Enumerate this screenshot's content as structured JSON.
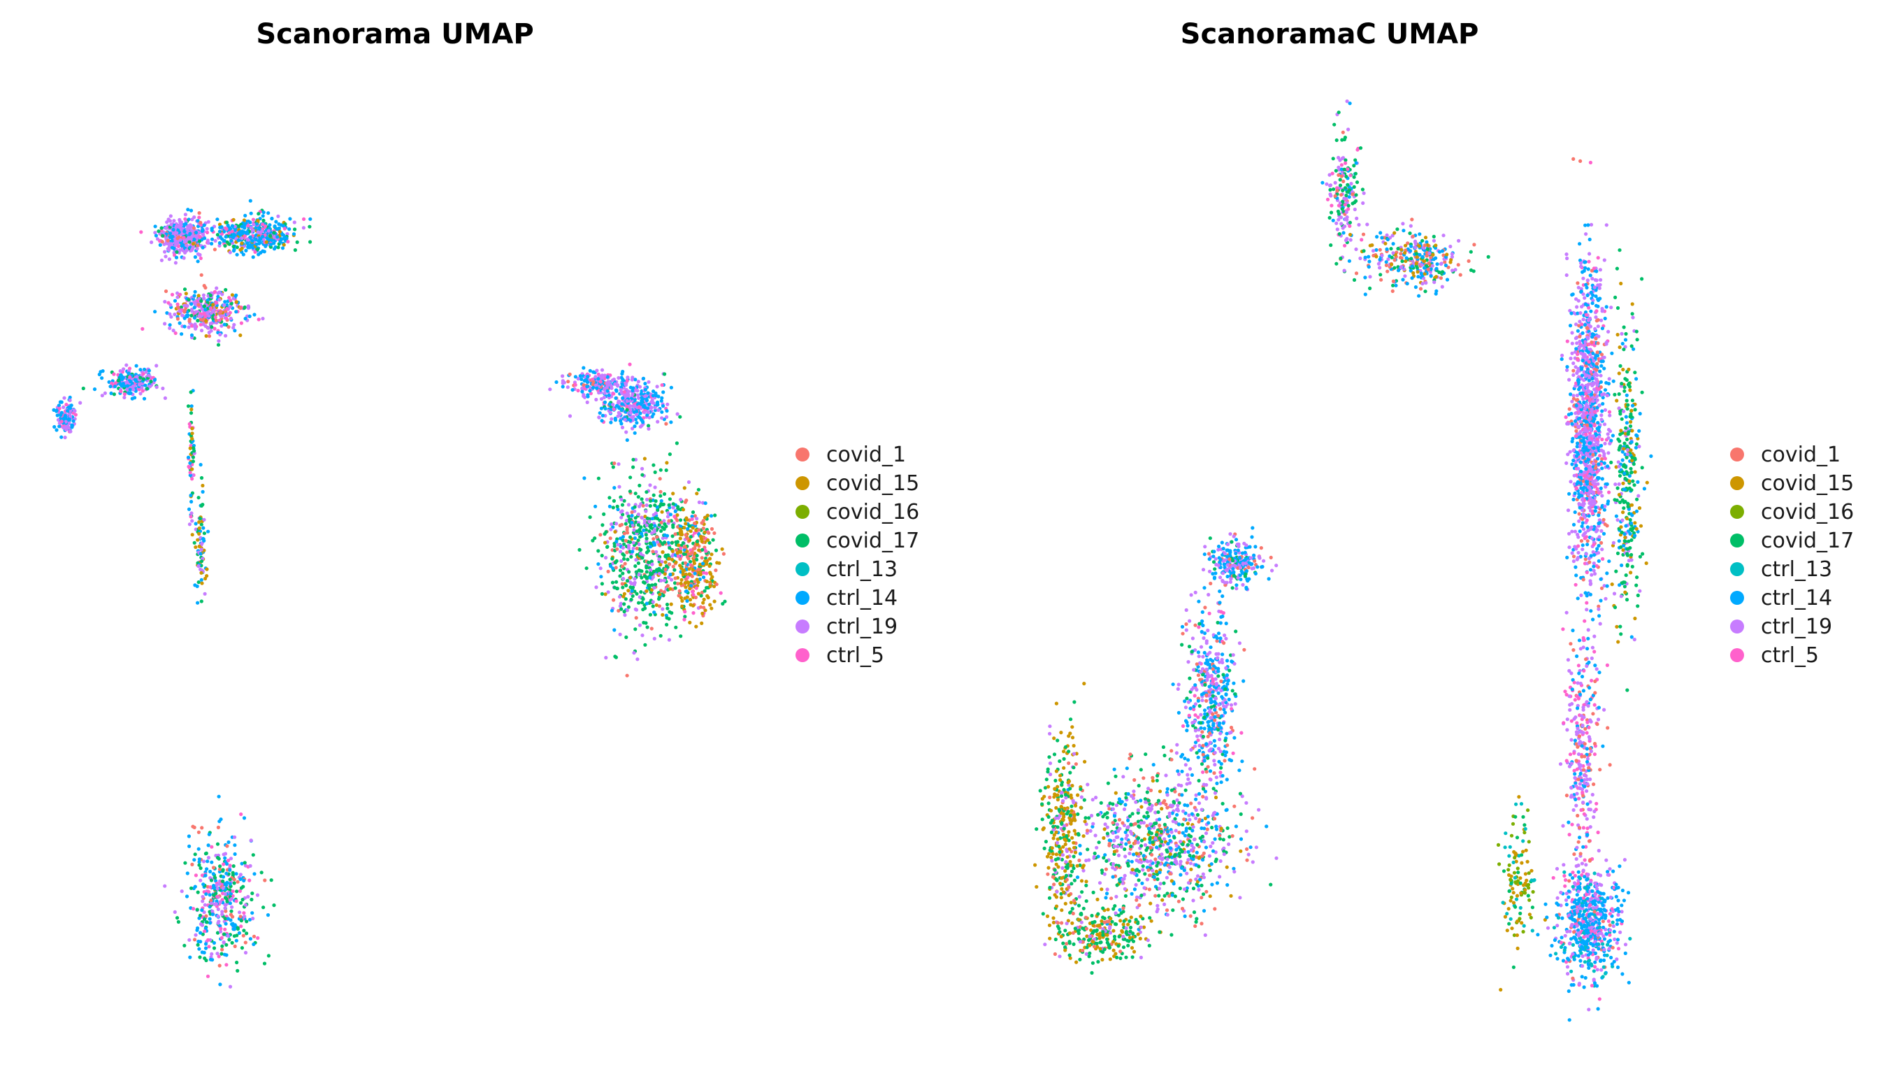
{
  "samples": [
    {
      "name": "covid_1",
      "color": "#F8766D"
    },
    {
      "name": "covid_15",
      "color": "#CD9600"
    },
    {
      "name": "covid_16",
      "color": "#7CAE00"
    },
    {
      "name": "covid_17",
      "color": "#00BE67"
    },
    {
      "name": "ctrl_13",
      "color": "#00BFC4"
    },
    {
      "name": "ctrl_14",
      "color": "#00A9FF"
    },
    {
      "name": "ctrl_19",
      "color": "#C77CFF"
    },
    {
      "name": "ctrl_5",
      "color": "#FF61CC"
    }
  ],
  "chart_data": [
    {
      "type": "scatter",
      "title": "Scanorama UMAP",
      "xlabel": "",
      "ylabel": "",
      "axes_visible": false,
      "grid": false,
      "legend_position": "right",
      "legend": [
        "covid_1",
        "covid_15",
        "covid_16",
        "covid_17",
        "ctrl_13",
        "ctrl_14",
        "ctrl_19",
        "ctrl_5"
      ],
      "clusters": [
        {
          "center": [
            0.92,
            0.95
          ],
          "spread": [
            0.09,
            0.04
          ],
          "count": 420,
          "mix": {
            "ctrl_19": 0.55,
            "ctrl_14": 0.25,
            "covid_1": 0.08,
            "ctrl_5": 0.07,
            "covid_17": 0.05
          }
        },
        {
          "center": [
            1.45,
            0.95
          ],
          "spread": [
            0.14,
            0.04
          ],
          "count": 420,
          "mix": {
            "ctrl_14": 0.55,
            "covid_17": 0.15,
            "ctrl_19": 0.12,
            "covid_15": 0.1,
            "ctrl_5": 0.08
          }
        },
        {
          "center": [
            1.1,
            0.62
          ],
          "spread": [
            0.14,
            0.05
          ],
          "count": 360,
          "mix": {
            "ctrl_19": 0.35,
            "ctrl_14": 0.25,
            "ctrl_5": 0.15,
            "covid_17": 0.1,
            "covid_15": 0.08,
            "covid_1": 0.07
          }
        },
        {
          "center": [
            0.55,
            0.3
          ],
          "spread": [
            0.09,
            0.03
          ],
          "count": 220,
          "mix": {
            "ctrl_19": 0.4,
            "ctrl_14": 0.4,
            "ctrl_5": 0.1,
            "covid_17": 0.1
          }
        },
        {
          "center": [
            0.05,
            0.15
          ],
          "spread": [
            0.04,
            0.04
          ],
          "count": 120,
          "mix": {
            "ctrl_14": 0.5,
            "ctrl_19": 0.35,
            "ctrl_5": 0.15
          }
        },
        {
          "center": [
            0.98,
            -0.05
          ],
          "spread": [
            0.01,
            0.12
          ],
          "count": 60,
          "mix": {
            "ctrl_5": 0.25,
            "covid_15": 0.25,
            "covid_17": 0.2,
            "ctrl_14": 0.2,
            "ctrl_19": 0.1
          }
        },
        {
          "center": [
            1.05,
            -0.4
          ],
          "spread": [
            0.02,
            0.12
          ],
          "count": 80,
          "mix": {
            "covid_15": 0.3,
            "covid_17": 0.25,
            "ctrl_14": 0.25,
            "ctrl_19": 0.2
          }
        },
        {
          "center": [
            4.0,
            0.3
          ],
          "spread": [
            0.12,
            0.03
          ],
          "count": 200,
          "mix": {
            "ctrl_19": 0.45,
            "ctrl_14": 0.35,
            "ctrl_5": 0.1,
            "covid_1": 0.1
          }
        },
        {
          "center": [
            4.25,
            0.2
          ],
          "spread": [
            0.12,
            0.05
          ],
          "count": 320,
          "mix": {
            "ctrl_14": 0.45,
            "ctrl_19": 0.4,
            "ctrl_5": 0.1,
            "covid_17": 0.05
          }
        },
        {
          "center": [
            4.35,
            -0.45
          ],
          "spread": [
            0.18,
            0.16
          ],
          "count": 650,
          "mix": {
            "covid_17": 0.55,
            "ctrl_19": 0.2,
            "ctrl_14": 0.1,
            "covid_1": 0.1,
            "covid_15": 0.05
          }
        },
        {
          "center": [
            4.7,
            -0.5
          ],
          "spread": [
            0.09,
            0.12
          ],
          "count": 320,
          "mix": {
            "covid_15": 0.4,
            "covid_1": 0.25,
            "covid_17": 0.15,
            "ctrl_14": 0.1,
            "ctrl_5": 0.1
          }
        },
        {
          "center": [
            1.2,
            -2.0
          ],
          "spread": [
            0.13,
            0.14
          ],
          "count": 420,
          "mix": {
            "covid_17": 0.3,
            "ctrl_14": 0.25,
            "ctrl_19": 0.2,
            "ctrl_5": 0.15,
            "covid_1": 0.1
          }
        }
      ]
    },
    {
      "type": "scatter",
      "title": "ScanoramaC UMAP",
      "xlabel": "",
      "ylabel": "",
      "axes_visible": false,
      "grid": false,
      "legend_position": "right",
      "legend": [
        "covid_1",
        "covid_15",
        "covid_16",
        "covid_17",
        "ctrl_13",
        "ctrl_14",
        "ctrl_19",
        "ctrl_5"
      ],
      "clusters": [
        {
          "center": [
            2.75,
            1.15
          ],
          "spread": [
            0.06,
            0.12
          ],
          "count": 170,
          "mix": {
            "covid_17": 0.35,
            "ctrl_19": 0.3,
            "ctrl_5": 0.15,
            "ctrl_14": 0.1,
            "covid_1": 0.1
          }
        },
        {
          "center": [
            3.3,
            0.85
          ],
          "spread": [
            0.2,
            0.06
          ],
          "count": 320,
          "mix": {
            "ctrl_14": 0.3,
            "ctrl_19": 0.25,
            "covid_1": 0.2,
            "covid_17": 0.15,
            "covid_15": 0.1
          }
        },
        {
          "center": [
            1.9,
            -0.5
          ],
          "spread": [
            0.1,
            0.05
          ],
          "count": 240,
          "mix": {
            "ctrl_14": 0.5,
            "ctrl_19": 0.3,
            "covid_17": 0.1,
            "covid_1": 0.1
          }
        },
        {
          "center": [
            1.7,
            -1.1
          ],
          "spread": [
            0.1,
            0.2
          ],
          "count": 440,
          "mix": {
            "ctrl_14": 0.45,
            "ctrl_19": 0.3,
            "covid_17": 0.1,
            "covid_1": 0.08,
            "ctrl_5": 0.07
          }
        },
        {
          "center": [
            1.3,
            -1.75
          ],
          "spread": [
            0.3,
            0.16
          ],
          "count": 800,
          "mix": {
            "ctrl_19": 0.3,
            "covid_17": 0.25,
            "ctrl_14": 0.2,
            "covid_1": 0.15,
            "covid_15": 0.1
          }
        },
        {
          "center": [
            0.55,
            -1.7
          ],
          "spread": [
            0.08,
            0.2
          ],
          "count": 320,
          "mix": {
            "covid_15": 0.45,
            "covid_17": 0.35,
            "covid_1": 0.1,
            "ctrl_19": 0.1
          }
        },
        {
          "center": [
            0.85,
            -2.15
          ],
          "spread": [
            0.18,
            0.06
          ],
          "count": 240,
          "mix": {
            "covid_17": 0.45,
            "covid_15": 0.35,
            "covid_1": 0.1,
            "ctrl_19": 0.1
          }
        },
        {
          "center": [
            4.65,
            0.1
          ],
          "spread": [
            0.07,
            0.35
          ],
          "count": 1200,
          "mix": {
            "ctrl_19": 0.45,
            "ctrl_14": 0.35,
            "ctrl_5": 0.12,
            "covid_1": 0.08
          }
        },
        {
          "center": [
            4.95,
            -0.1
          ],
          "spread": [
            0.05,
            0.35
          ],
          "count": 320,
          "mix": {
            "covid_17": 0.45,
            "ctrl_14": 0.2,
            "ctrl_19": 0.15,
            "covid_15": 0.2
          }
        },
        {
          "center": [
            4.6,
            -1.35
          ],
          "spread": [
            0.06,
            0.25
          ],
          "count": 300,
          "mix": {
            "ctrl_19": 0.35,
            "ctrl_5": 0.3,
            "ctrl_14": 0.2,
            "covid_1": 0.15
          }
        },
        {
          "center": [
            4.1,
            -1.9
          ],
          "spread": [
            0.07,
            0.15
          ],
          "count": 120,
          "mix": {
            "covid_15": 0.35,
            "covid_16": 0.2,
            "ctrl_13": 0.2,
            "covid_17": 0.25
          }
        },
        {
          "center": [
            4.65,
            -2.1
          ],
          "spread": [
            0.12,
            0.12
          ],
          "count": 600,
          "mix": {
            "ctrl_14": 0.45,
            "ctrl_19": 0.25,
            "ctrl_13": 0.15,
            "ctrl_5": 0.1,
            "covid_1": 0.05
          }
        }
      ]
    }
  ]
}
